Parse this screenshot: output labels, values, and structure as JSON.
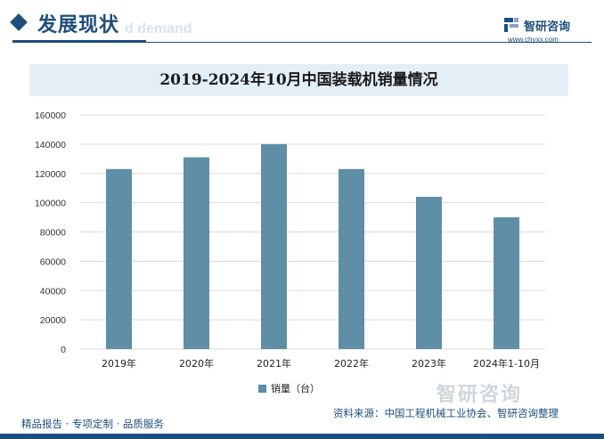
{
  "header": {
    "section_title": "发展现状",
    "watermark": "d demand",
    "logo_text": "智研咨询",
    "logo_url": "www.chyxx.com"
  },
  "colors": {
    "brand": "#1e4e7c",
    "bar": "#5e8fa6",
    "title_bg": "#e4eef7",
    "grid": "#d9d9d9"
  },
  "chart_data": {
    "type": "bar",
    "title": "2019-2024年10月中国装载机销量情况",
    "categories": [
      "2019年",
      "2020年",
      "2021年",
      "2022年",
      "2023年",
      "2024年1-10月"
    ],
    "series": [
      {
        "name": "销量（台）",
        "values": [
          123000,
          131000,
          140000,
          123000,
          104000,
          90000
        ]
      }
    ],
    "ylim": [
      0,
      160000
    ],
    "yticks": [
      "0",
      "20000",
      "40000",
      "60000",
      "80000",
      "100000",
      "120000",
      "140000",
      "160000"
    ],
    "grid": true,
    "legend_position": "bottom"
  },
  "footer": {
    "left": "精品报告 · 专项定制 · 品质服务",
    "right": "资料来源：中国工程机械工业协会、智研咨询整理",
    "brand_watermark": "智研咨询"
  }
}
